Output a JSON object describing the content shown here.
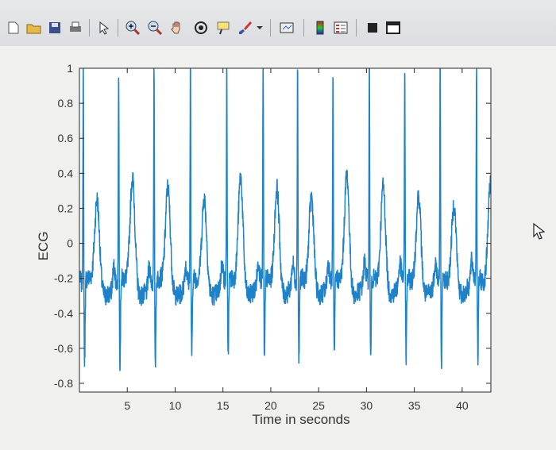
{
  "toolbar": {
    "icons": [
      "new-file-icon",
      "open-folder-icon",
      "save-icon",
      "print-icon",
      "pointer-icon",
      "zoom-in-icon",
      "zoom-out-icon",
      "pan-hand-icon",
      "rotate-3d-icon",
      "data-cursor-icon",
      "brush-icon",
      "dropdown-arrow-icon",
      "link-plot-icon",
      "colorbar-icon",
      "legend-icon",
      "hide-plot-tools-icon",
      "show-plot-tools-icon"
    ]
  },
  "colors": {
    "line": "#1f82c8",
    "axes_bg": "#ffffff",
    "figure_bg": "#f0f0ee"
  },
  "chart_data": {
    "type": "line",
    "xlabel": "Time in seconds",
    "ylabel": "ECG",
    "xlim": [
      0,
      43
    ],
    "ylim": [
      -0.85,
      1
    ],
    "xticks": [
      5,
      10,
      15,
      20,
      25,
      30,
      35,
      40
    ],
    "yticks": [
      -0.8,
      -0.6,
      -0.4,
      -0.2,
      0,
      0.2,
      0.4,
      0.6,
      0.8,
      1
    ],
    "ytick_labels": [
      "-0.8",
      "-0.6",
      "-0.4",
      "-0.2",
      "0",
      "0.2",
      "0.4",
      "0.6",
      "0.8",
      "1"
    ],
    "grid": false,
    "series": [
      {
        "r_peak_times": [
          0.4,
          4.1,
          7.8,
          11.6,
          15.4,
          19.2,
          22.8,
          26.5,
          30.3,
          34.0,
          37.7,
          41.5
        ],
        "r_peak_value": 1.0,
        "s_trough_value": -0.72,
        "t_wave_peak_range": [
          0.2,
          0.38
        ],
        "baseline_range": [
          -0.35,
          -0.15
        ]
      }
    ]
  }
}
